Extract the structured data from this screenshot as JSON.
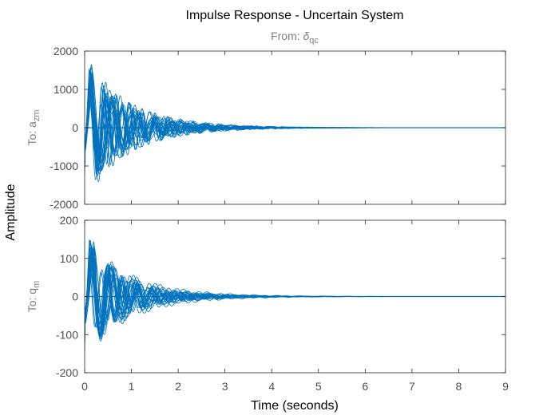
{
  "chart_data": {
    "type": "line",
    "title": "Impulse Response - Uncertain System",
    "subtitle_prefix": "From: ",
    "subtitle_symbol": "δ",
    "subtitle_subscript": "qc",
    "xlabel": "Time (seconds)",
    "ylabel": "Amplitude",
    "xlim": [
      0,
      9
    ],
    "xticks": [
      "0",
      "1",
      "2",
      "3",
      "4",
      "5",
      "6",
      "7",
      "8",
      "9"
    ],
    "grid": false,
    "line_color": "#0072bd",
    "axis_color": "#262626",
    "num_samples": 25,
    "panels": [
      {
        "output_prefix": "To: a",
        "output_subscript": "zm",
        "ylim": [
          -2000,
          2000
        ],
        "yticks": [
          "2000",
          "1000",
          "0",
          "-1000",
          "-2000"
        ],
        "envelope": {
          "peak_time_min": 0.07,
          "peak_time_max": 0.18,
          "peak_min": 800,
          "peak_max": 1680,
          "trough_min": -600,
          "trough_max": -1380,
          "osc_period_min": 0.22,
          "osc_period_max": 0.52,
          "decay_min": 0.55,
          "decay_max": 1.1,
          "settle_time": 7.8
        }
      },
      {
        "output_prefix": "To: q",
        "output_subscript": "m",
        "ylim": [
          -200,
          200
        ],
        "yticks": [
          "200",
          "100",
          "0",
          "-100",
          "-200"
        ],
        "envelope": {
          "peak_time_min": 0.08,
          "peak_time_max": 0.2,
          "peak_min": 90,
          "peak_max": 152,
          "trough_min": -60,
          "trough_max": -162,
          "osc_period_min": 0.22,
          "osc_period_max": 0.52,
          "decay_min": 0.55,
          "decay_max": 1.1,
          "settle_time": 7.8
        }
      }
    ]
  }
}
